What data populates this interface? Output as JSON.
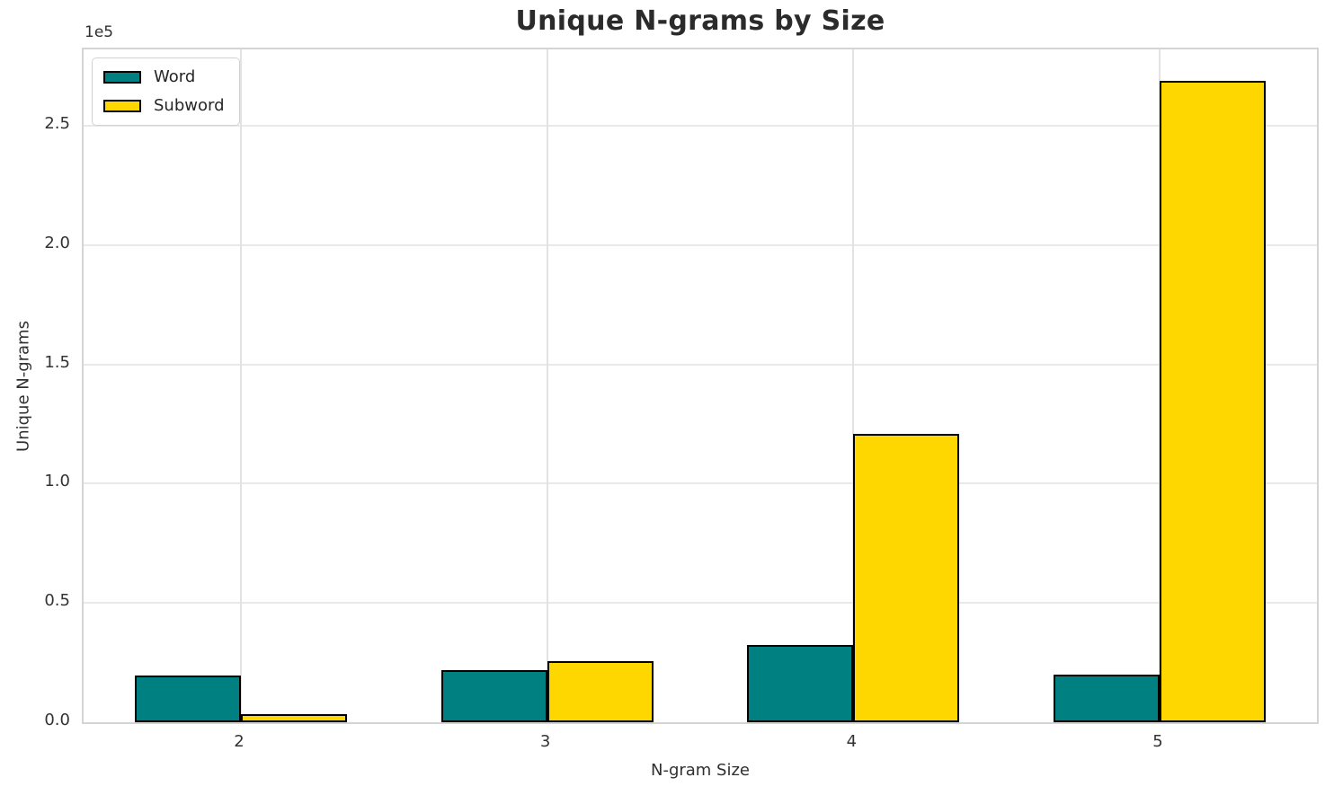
{
  "chart_data": {
    "type": "bar",
    "title": "Unique N-grams by Size",
    "xlabel": "N-gram Size",
    "ylabel": "Unique N-grams",
    "y_axis_multiplier_label": "1e5",
    "categories": [
      "2",
      "3",
      "4",
      "5"
    ],
    "series": [
      {
        "name": "Word",
        "color": "#008080",
        "values": [
          19500,
          22000,
          32500,
          20000
        ]
      },
      {
        "name": "Subword",
        "color": "#FFD700",
        "values": [
          3500,
          25500,
          121000,
          269000
        ]
      }
    ],
    "ylim": [
      0,
      282000
    ],
    "x_tick_labels": [
      "2",
      "3",
      "4",
      "5"
    ],
    "y_tick_labels": [
      "0.0",
      "0.5",
      "1.0",
      "1.5",
      "2.0",
      "2.5"
    ],
    "y_tick_values": [
      0,
      50000,
      100000,
      150000,
      200000,
      250000
    ],
    "grid": true,
    "legend_position": "upper left",
    "bar_edge_color": "#000000",
    "background_color": "#ffffff",
    "grid_color": "#e6e6e6",
    "spine_color": "#d4d4d4",
    "text_color": "#262626"
  }
}
